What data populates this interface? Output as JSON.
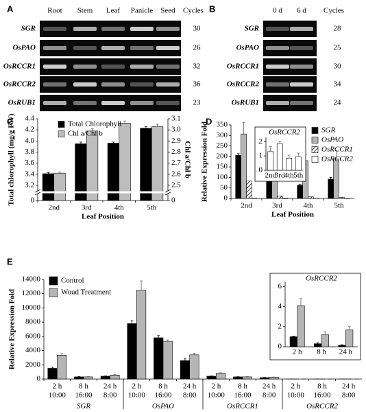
{
  "panel_a": {
    "label": "A",
    "columns": [
      "Root",
      "Stem",
      "Leaf",
      "Panicle",
      "Seed"
    ],
    "cycles_header": "Cycles",
    "rows": [
      {
        "gene": "SGR",
        "cycles": 30
      },
      {
        "gene": "OsPAO",
        "cycles": 26
      },
      {
        "gene": "OsRCCR1",
        "cycles": 32
      },
      {
        "gene": "OsRCCR2",
        "cycles": 36
      },
      {
        "gene": "OsRUB1",
        "cycles": 23
      }
    ]
  },
  "panel_b": {
    "label": "B",
    "columns": [
      "0 d",
      "6 d"
    ],
    "cycles_header": "Cycles",
    "rows": [
      {
        "gene": "SGR",
        "cycles": 28
      },
      {
        "gene": "OsPAO",
        "cycles": 25
      },
      {
        "gene": "OsRCCR1",
        "cycles": 30
      },
      {
        "gene": "OsRCCR2",
        "cycles": 34
      },
      {
        "gene": "OsRUB1",
        "cycles": 24
      }
    ]
  },
  "chart_data": [
    {
      "type": "bar",
      "panel_label": "C",
      "ylabel": "Total chlorophyll (mg/g FW)",
      "y2label": "Chl a/Chl b",
      "xlabel": "Leaf Position",
      "categories": [
        "2nd",
        "3rd",
        "4th",
        "5th"
      ],
      "series": [
        {
          "name": "Total Chlorophyll",
          "color": "#000000",
          "values": [
            3.41,
            3.95,
            3.96,
            4.23
          ],
          "errors": [
            0.02,
            0.03,
            0.02,
            0.03
          ]
        },
        {
          "name": "Chl a/Chl b",
          "color": "#bdbdbd",
          "axis": "y2",
          "values": [
            2.61,
            2.99,
            3.06,
            3.03
          ],
          "errors": [
            0.01,
            0.02,
            0.02,
            0.02
          ]
        }
      ],
      "ylim": [
        0,
        4.4
      ],
      "ybreak": [
        0,
        3.1
      ],
      "yticks": [
        0,
        3.2,
        3.4,
        3.6,
        3.8,
        {
          "value": 4,
          "label": "4.0"
        },
        4.2,
        4.4
      ],
      "y2lim": [
        0,
        3.1
      ],
      "y2break": [
        0,
        2.45
      ],
      "y2ticks": [
        0,
        2.5,
        2.6,
        2.7,
        2.8,
        2.9,
        {
          "value": 3,
          "label": "3.0"
        },
        3.1
      ],
      "legend": "upper left"
    },
    {
      "type": "bar",
      "panel_label": "D",
      "ylabel": "Relative Expression Fold",
      "xlabel": "Leaf Position",
      "categories": [
        "2nd",
        "3rd",
        "4th",
        "5th"
      ],
      "series": [
        {
          "name": "SGR",
          "color": "#000000",
          "values": [
            205,
            100,
            63,
            92
          ],
          "errors": [
            8,
            10,
            5,
            8
          ]
        },
        {
          "name": "OsPAO",
          "color": "#b5b5b5",
          "values": [
            307,
            170,
            180,
            188
          ],
          "errors": [
            55,
            25,
            28,
            40
          ]
        },
        {
          "name": "OsRCCR1",
          "color": "#555555",
          "hatch": true,
          "values": [
            83,
            12,
            8,
            5
          ]
        },
        {
          "name": "OsRCCR2",
          "color": "#ffffff",
          "values": [
            1.3,
            1.85,
            0.85,
            0.95
          ]
        }
      ],
      "ylim": [
        0,
        350
      ],
      "yticks": [
        0,
        50,
        100,
        150,
        200,
        250,
        300,
        350
      ],
      "legend": "upper right",
      "inset": {
        "title": "OsRCCR2",
        "categories": [
          "2nd",
          "3rd",
          "4th",
          "5th"
        ],
        "values": [
          1.3,
          1.85,
          0.85,
          0.95
        ],
        "errors": [
          0.35,
          0.15,
          0.2,
          0.25
        ],
        "color": "#ffffff",
        "ylim": [
          0,
          2.3
        ],
        "yticks": [
          0,
          1,
          2
        ]
      }
    },
    {
      "type": "bar",
      "panel_label": "E",
      "ylabel": "Relative Expression Fold",
      "categories": [
        "2 h",
        "8 h",
        "24 h",
        "2 h",
        "8 h",
        "24 h",
        "2 h",
        "8 h",
        "24 h",
        "2 h",
        "8 h",
        "24 h"
      ],
      "category_times": [
        "10:00",
        "16:00",
        "8:00",
        "10:00",
        "16:00",
        "8:00",
        "10:00",
        "16:00",
        "8:00",
        "10:00",
        "16:00",
        "8:00"
      ],
      "groups": [
        "SGR",
        "OsPAO",
        "OsRCCR1",
        "OsRCCR2"
      ],
      "series": [
        {
          "name": "Control",
          "color": "#000000",
          "values": [
            1500,
            300,
            400,
            7800,
            5800,
            2600,
            400,
            300,
            200,
            1,
            0.3,
            0.15
          ],
          "errors": [
            150,
            50,
            50,
            400,
            300,
            300,
            50,
            30,
            20,
            0.05,
            0.1,
            0.05
          ]
        },
        {
          "name": "Woud Treatment",
          "color": "#b5b5b5",
          "values": [
            3350,
            300,
            550,
            12500,
            5300,
            3400,
            800,
            300,
            250,
            4.1,
            1.2,
            1.7
          ],
          "errors": [
            250,
            50,
            80,
            1300,
            200,
            200,
            80,
            50,
            40,
            0.7,
            0.3,
            0.3
          ]
        }
      ],
      "ylim": [
        0,
        14000
      ],
      "yticks": [
        0,
        2000,
        4000,
        6000,
        8000,
        10000,
        12000,
        14000
      ],
      "legend": "upper left",
      "inset": {
        "title": "OsRCCR2",
        "categories": [
          "2 h",
          "8 h",
          "24 h"
        ],
        "ylim": [
          0,
          6.5
        ],
        "yticks": [
          0,
          2,
          4,
          6
        ],
        "series": [
          {
            "color": "#000000",
            "values": [
              1,
              0.3,
              0.15
            ],
            "errors": [
              0.05,
              0.1,
              0.05
            ]
          },
          {
            "color": "#b5b5b5",
            "values": [
              4.1,
              1.2,
              1.7
            ],
            "errors": [
              0.7,
              0.3,
              0.3
            ]
          }
        ]
      }
    }
  ]
}
